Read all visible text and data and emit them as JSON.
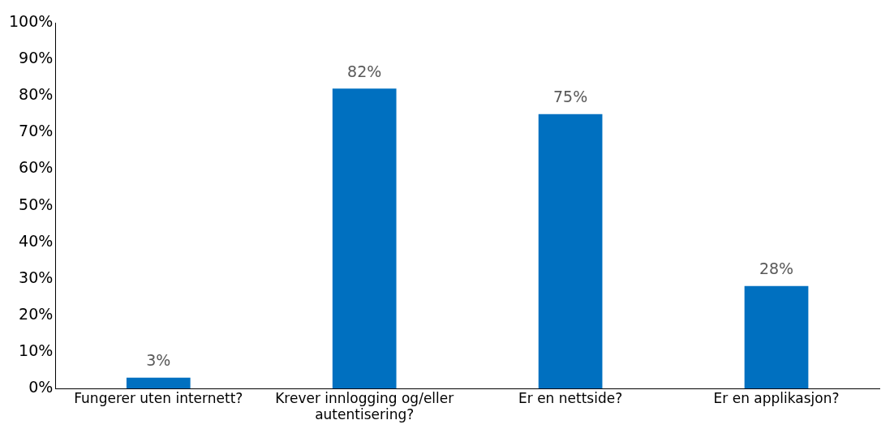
{
  "chart_data": {
    "type": "bar",
    "categories": [
      "Fungerer uten internett?",
      "Krever innlogging og/eller autentisering?",
      "Er en nettside?",
      "Er en applikasjon?"
    ],
    "values": [
      3,
      82,
      75,
      28
    ],
    "value_labels": [
      "3%",
      "82%",
      "75%",
      "28%"
    ],
    "color": "#0070c0",
    "ylim": [
      0,
      100
    ],
    "yticks": [
      {
        "value": 0,
        "label": "0%"
      },
      {
        "value": 10,
        "label": "10%"
      },
      {
        "value": 20,
        "label": "20%"
      },
      {
        "value": 30,
        "label": "30%"
      },
      {
        "value": 40,
        "label": "40%"
      },
      {
        "value": 50,
        "label": "50%"
      },
      {
        "value": 60,
        "label": "60%"
      },
      {
        "value": 70,
        "label": "70%"
      },
      {
        "value": 80,
        "label": "80%"
      },
      {
        "value": 90,
        "label": "90%"
      },
      {
        "value": 100,
        "label": "100%"
      }
    ],
    "grid": false,
    "legend": false
  }
}
